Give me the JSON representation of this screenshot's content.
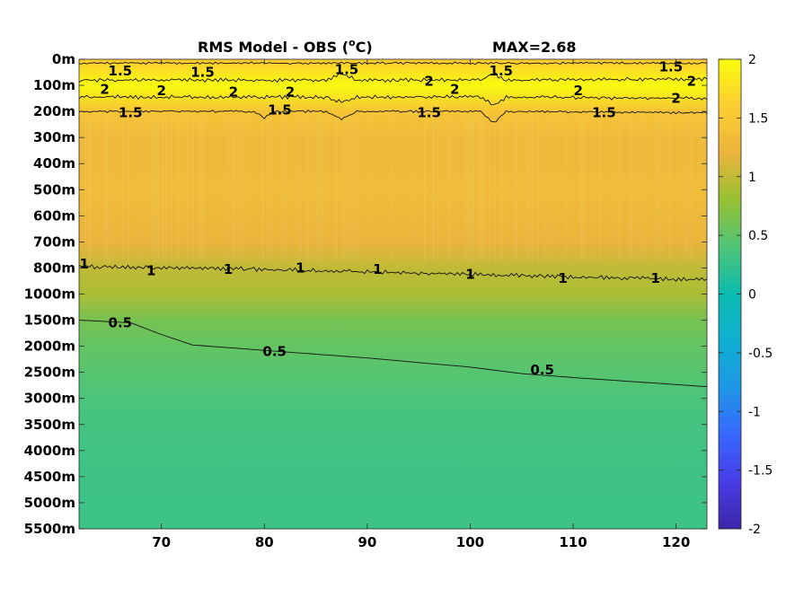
{
  "chart_data": {
    "type": "heatmap",
    "title": "RMS Model - OBS (",
    "title_unit": "o",
    "title_unit_suffix": "C)",
    "annotation": "MAX=2.68",
    "xlabel": "",
    "ylabel": "",
    "x_ticks": [
      "70",
      "80",
      "90",
      "100",
      "110",
      "120"
    ],
    "x_tick_values": [
      70,
      80,
      90,
      100,
      110,
      120
    ],
    "xlim": [
      62,
      123
    ],
    "y_ticks": [
      "0m",
      "100m",
      "200m",
      "300m",
      "400m",
      "500m",
      "600m",
      "700m",
      "800m",
      "1000m",
      "1500m",
      "2000m",
      "2500m",
      "3000m",
      "3500m",
      "4000m",
      "4500m",
      "5000m",
      "5500m"
    ],
    "colorbar": {
      "ticks": [
        "2",
        "1.5",
        "1",
        "0.5",
        "0",
        "-0.5",
        "-1",
        "-1.5",
        "-2"
      ],
      "range": [
        -2,
        2
      ],
      "colormap": "parula"
    },
    "depth_profile": [
      {
        "depth": "0m",
        "value": 1.55
      },
      {
        "depth": "100m",
        "value": 2.05
      },
      {
        "depth": "200m",
        "value": 1.45
      },
      {
        "depth": "300m",
        "value": 1.3
      },
      {
        "depth": "400m",
        "value": 1.3
      },
      {
        "depth": "500m",
        "value": 1.32
      },
      {
        "depth": "600m",
        "value": 1.28
      },
      {
        "depth": "700m",
        "value": 1.2
      },
      {
        "depth": "800m",
        "value": 1.0
      },
      {
        "depth": "1000m",
        "value": 0.9
      },
      {
        "depth": "1500m",
        "value": 0.62
      },
      {
        "depth": "2000m",
        "value": 0.52
      },
      {
        "depth": "2500m",
        "value": 0.45
      },
      {
        "depth": "3000m",
        "value": 0.38
      },
      {
        "depth": "3500m",
        "value": 0.34
      },
      {
        "depth": "4000m",
        "value": 0.32
      },
      {
        "depth": "4500m",
        "value": 0.31
      },
      {
        "depth": "5000m",
        "value": 0.3
      },
      {
        "depth": "5500m",
        "value": 0.3
      }
    ],
    "contour_labels": [
      {
        "text": "1.5",
        "x": 66,
        "depth_index": 0.45
      },
      {
        "text": "1.5",
        "x": 74,
        "depth_index": 0.5
      },
      {
        "text": "1.5",
        "x": 88,
        "depth_index": 0.4
      },
      {
        "text": "1.5",
        "x": 103,
        "depth_index": 0.45
      },
      {
        "text": "1.5",
        "x": 119.5,
        "depth_index": 0.3
      },
      {
        "text": "2",
        "x": 64.5,
        "depth_index": 1.15
      },
      {
        "text": "2",
        "x": 70,
        "depth_index": 1.2
      },
      {
        "text": "2",
        "x": 77,
        "depth_index": 1.25
      },
      {
        "text": "2",
        "x": 82.5,
        "depth_index": 1.25
      },
      {
        "text": "2",
        "x": 96,
        "depth_index": 0.85
      },
      {
        "text": "2",
        "x": 98.5,
        "depth_index": 1.15
      },
      {
        "text": "2",
        "x": 110.5,
        "depth_index": 1.2
      },
      {
        "text": "2",
        "x": 121.5,
        "depth_index": 0.85
      },
      {
        "text": "2",
        "x": 120,
        "depth_index": 1.5
      },
      {
        "text": "1.5",
        "x": 67,
        "depth_index": 2.05
      },
      {
        "text": "1.5",
        "x": 81.5,
        "depth_index": 1.95
      },
      {
        "text": "1.5",
        "x": 96,
        "depth_index": 2.05
      },
      {
        "text": "1.5",
        "x": 113,
        "depth_index": 2.05
      },
      {
        "text": "1",
        "x": 62.5,
        "depth_index": 7.85
      },
      {
        "text": "1",
        "x": 69,
        "depth_index": 8.1
      },
      {
        "text": "1",
        "x": 76.5,
        "depth_index": 8.05
      },
      {
        "text": "1",
        "x": 83.5,
        "depth_index": 8.0
      },
      {
        "text": "1",
        "x": 91,
        "depth_index": 8.05
      },
      {
        "text": "1",
        "x": 100,
        "depth_index": 8.25
      },
      {
        "text": "1",
        "x": 109,
        "depth_index": 8.4
      },
      {
        "text": "1",
        "x": 118,
        "depth_index": 8.4
      },
      {
        "text": "0.5",
        "x": 66,
        "depth_index": 10.1
      },
      {
        "text": "0.5",
        "x": 81,
        "depth_index": 11.2
      },
      {
        "text": "0.5",
        "x": 107,
        "depth_index": 11.9
      }
    ],
    "contours": [
      {
        "level": 1.5,
        "noisy": true,
        "amp": 0.05,
        "points": [
          [
            62,
            0.15
          ],
          [
            123,
            0.15
          ]
        ]
      },
      {
        "level": 2,
        "noisy": true,
        "amp": 0.08,
        "points": [
          [
            62,
            0.8
          ],
          [
            86,
            0.8
          ],
          [
            87.5,
            0.55
          ],
          [
            89,
            0.8
          ],
          [
            101,
            0.8
          ],
          [
            102.3,
            0.55
          ],
          [
            103.5,
            0.8
          ],
          [
            123,
            0.75
          ]
        ]
      },
      {
        "level": 2,
        "noisy": true,
        "amp": 0.08,
        "points": [
          [
            62,
            1.45
          ],
          [
            86,
            1.45
          ],
          [
            87.5,
            1.65
          ],
          [
            89,
            1.45
          ],
          [
            101,
            1.45
          ],
          [
            102.3,
            1.75
          ],
          [
            103.5,
            1.45
          ],
          [
            123,
            1.5
          ]
        ]
      },
      {
        "level": 1.5,
        "noisy": true,
        "amp": 0.05,
        "points": [
          [
            62,
            2.0
          ],
          [
            79,
            2.0
          ],
          [
            80,
            2.25
          ],
          [
            81,
            2.0
          ],
          [
            86,
            2.0
          ],
          [
            87.5,
            2.3
          ],
          [
            89,
            2.0
          ],
          [
            101,
            2.0
          ],
          [
            102.3,
            2.45
          ],
          [
            103.5,
            2.0
          ],
          [
            123,
            2.05
          ]
        ]
      },
      {
        "level": 1,
        "noisy": true,
        "amp": 0.09,
        "points": [
          [
            62,
            7.95
          ],
          [
            80,
            8.05
          ],
          [
            100,
            8.25
          ],
          [
            123,
            8.45
          ]
        ]
      },
      {
        "level": 0.5,
        "noisy": false,
        "amp": 0.0,
        "points": [
          [
            62,
            10.0
          ],
          [
            67,
            10.1
          ],
          [
            70,
            10.55
          ],
          [
            73,
            10.95
          ],
          [
            78,
            11.1
          ],
          [
            90,
            11.45
          ],
          [
            100,
            11.8
          ],
          [
            105,
            12.05
          ],
          [
            110,
            12.2
          ],
          [
            123,
            12.55
          ]
        ]
      }
    ]
  }
}
